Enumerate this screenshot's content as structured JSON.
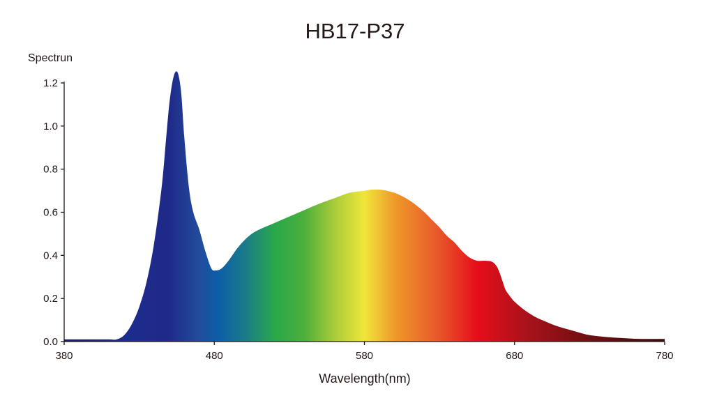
{
  "chart_data": {
    "type": "area",
    "title": "HB17-P37",
    "xlabel": "Wavelength(nm)",
    "ylabel": "Spectrun",
    "xlim": [
      380,
      780
    ],
    "ylim": [
      0,
      1.2
    ],
    "x_ticks": [
      380,
      480,
      580,
      680,
      780
    ],
    "x_tick_labels": [
      "380",
      "480",
      "580",
      "680",
      "780"
    ],
    "y_ticks": [
      0,
      0.2,
      0.4,
      0.6,
      0.8,
      1.0,
      1.2
    ],
    "y_tick_labels": [
      "0.0",
      "0.2",
      "0.4",
      "0.6",
      "0.8",
      "1.0",
      "1.2"
    ],
    "grid": false,
    "series": [
      {
        "x": [
          380,
          400,
          410,
          415,
          420,
          425,
          430,
          435,
          440,
          445,
          448,
          450,
          452,
          454,
          456,
          458,
          460,
          463,
          466,
          470,
          474,
          478,
          481,
          485,
          490,
          495,
          500,
          505,
          510,
          520,
          530,
          540,
          550,
          560,
          570,
          580,
          585,
          590,
          595,
          600,
          605,
          610,
          615,
          620,
          625,
          630,
          635,
          640,
          645,
          650,
          655,
          660,
          665,
          668,
          670,
          672,
          674,
          677,
          680,
          685,
          690,
          695,
          700,
          705,
          710,
          715,
          720,
          725,
          730,
          740,
          750,
          760,
          770,
          780
        ],
        "y": [
          0.01,
          0.01,
          0.01,
          0.01,
          0.03,
          0.08,
          0.16,
          0.28,
          0.46,
          0.72,
          0.95,
          1.1,
          1.2,
          1.25,
          1.24,
          1.15,
          0.95,
          0.72,
          0.6,
          0.52,
          0.42,
          0.34,
          0.33,
          0.34,
          0.38,
          0.43,
          0.47,
          0.5,
          0.52,
          0.55,
          0.58,
          0.61,
          0.64,
          0.665,
          0.69,
          0.7,
          0.705,
          0.705,
          0.7,
          0.69,
          0.675,
          0.655,
          0.63,
          0.6,
          0.565,
          0.53,
          0.49,
          0.46,
          0.42,
          0.39,
          0.375,
          0.375,
          0.37,
          0.35,
          0.32,
          0.28,
          0.24,
          0.21,
          0.185,
          0.155,
          0.13,
          0.11,
          0.095,
          0.08,
          0.068,
          0.058,
          0.048,
          0.038,
          0.03,
          0.022,
          0.017,
          0.013,
          0.012,
          0.012
        ]
      }
    ],
    "fill_gradient": [
      {
        "x": 380,
        "color": "#1a1d64"
      },
      {
        "x": 420,
        "color": "#1c2c8e"
      },
      {
        "x": 450,
        "color": "#1f2a88"
      },
      {
        "x": 470,
        "color": "#224c9d"
      },
      {
        "x": 482,
        "color": "#0b5da8"
      },
      {
        "x": 500,
        "color": "#1a7a8a"
      },
      {
        "x": 520,
        "color": "#28a84a"
      },
      {
        "x": 540,
        "color": "#4caf3c"
      },
      {
        "x": 560,
        "color": "#a8cc3a"
      },
      {
        "x": 580,
        "color": "#f0e63a"
      },
      {
        "x": 600,
        "color": "#ef9a2a"
      },
      {
        "x": 630,
        "color": "#e8552a"
      },
      {
        "x": 655,
        "color": "#e60e1a"
      },
      {
        "x": 690,
        "color": "#a6121a"
      },
      {
        "x": 730,
        "color": "#6e0f12"
      },
      {
        "x": 780,
        "color": "#3a0d0d"
      }
    ]
  }
}
